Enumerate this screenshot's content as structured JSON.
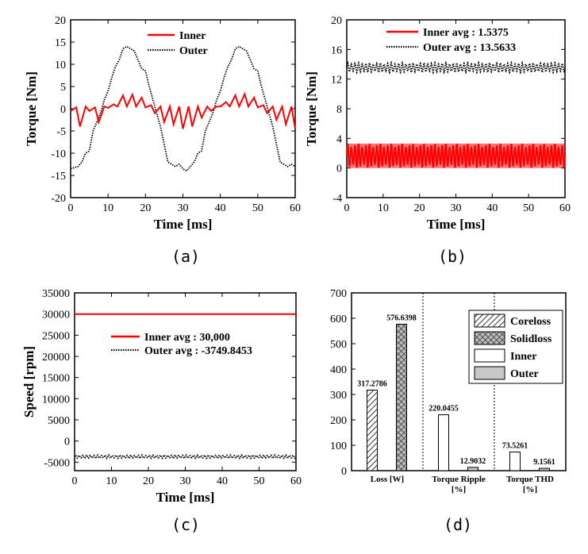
{
  "chart_data": [
    {
      "type": "line",
      "caption": "(a)",
      "xlabel": "Time [ms]",
      "ylabel": "Torque [Nm]",
      "xlim": [
        0,
        60
      ],
      "ylim": [
        -20,
        20
      ],
      "xticks": [
        "0",
        "10",
        "20",
        "30",
        "40",
        "50",
        "60"
      ],
      "yticks": [
        "-20",
        "-15",
        "-10",
        "-5",
        "0",
        "5",
        "10",
        "15",
        "20"
      ],
      "legend_position": "top-center",
      "series": [
        {
          "name": "Inner",
          "color": "#ff0000",
          "style": "solid",
          "x": [
            0,
            1.5,
            2.5,
            4,
            5,
            6.5,
            7.5,
            9,
            10,
            11.5,
            12.5,
            14,
            15,
            16.5,
            17.5,
            19,
            20,
            21.5,
            22.5,
            24,
            25,
            26.5,
            27.5,
            29,
            30,
            31.5,
            32.5,
            34,
            35,
            36.5,
            37.5,
            39,
            40,
            41.5,
            42.5,
            44,
            45,
            46.5,
            47.5,
            49,
            50,
            51.5,
            52.5,
            54,
            55,
            56.5,
            57.5,
            59,
            60
          ],
          "y": [
            -0.5,
            0.3,
            -4,
            0.5,
            -0.5,
            0.3,
            -3,
            0.5,
            0.2,
            1,
            0.5,
            3,
            0.5,
            3.2,
            0.5,
            2.5,
            0.3,
            0.8,
            -1,
            0.5,
            -3,
            0.5,
            -3.5,
            0.5,
            -4.5,
            0.5,
            -4,
            0.5,
            -2,
            0.5,
            -0.5,
            0.5,
            0.5,
            1.5,
            0.5,
            3,
            0.5,
            3.3,
            0.5,
            2.5,
            0.3,
            0.8,
            -1,
            0.5,
            -2.5,
            0.5,
            -3.5,
            0.5,
            -4.5
          ]
        },
        {
          "name": "Outer",
          "color": "#000000",
          "style": "dotted",
          "x": [
            0,
            2,
            3,
            4,
            5,
            6,
            7,
            8,
            9,
            10,
            11,
            12,
            13,
            14,
            15,
            16,
            17,
            18,
            19,
            20,
            21,
            22,
            23,
            24,
            25,
            26,
            27,
            28,
            29,
            30,
            31,
            32,
            33,
            34,
            35,
            36,
            37,
            38,
            39,
            40,
            41,
            42,
            43,
            44,
            45,
            46,
            47,
            48,
            49,
            50,
            51,
            52,
            53,
            54,
            55,
            56,
            57,
            58,
            59,
            60
          ],
          "y": [
            -13.5,
            -13,
            -12,
            -10,
            -9.5,
            -5,
            -3,
            -1,
            2,
            4,
            7,
            9.5,
            11,
            13.5,
            14,
            13.5,
            13,
            11,
            9,
            8.5,
            5,
            2,
            -1,
            -4,
            -8,
            -12,
            -12.5,
            -13,
            -12.5,
            -13.5,
            -14,
            -13,
            -12,
            -10,
            -9.5,
            -5,
            -3,
            -1,
            2,
            4,
            7,
            9.5,
            11,
            13.5,
            14,
            13.5,
            13,
            11,
            9,
            8.5,
            5,
            2,
            -1,
            -4,
            -8,
            -12,
            -12.5,
            -13,
            -12.5,
            -13
          ]
        }
      ]
    },
    {
      "type": "line",
      "caption": "(b)",
      "xlabel": "Time [ms]",
      "ylabel": "Torque [Nm]",
      "xlim": [
        0,
        60
      ],
      "ylim": [
        -4,
        20
      ],
      "xticks": [
        "0",
        "10",
        "20",
        "30",
        "40",
        "50",
        "60"
      ],
      "yticks": [
        "-4",
        "0",
        "4",
        "8",
        "12",
        "16",
        "20"
      ],
      "legend_position": "top-center",
      "series": [
        {
          "name": "Inner avg : 1.5375",
          "color": "#ff0000",
          "style": "solid",
          "mean": 1.5375,
          "min": 0,
          "max": 3.3,
          "oscillation_period_ms": 1
        },
        {
          "name": "Outer avg : 13.5633",
          "color": "#000000",
          "style": "dotted",
          "mean": 13.5633,
          "min": 12.9,
          "max": 14.2,
          "oscillation_period_ms": 1
        }
      ]
    },
    {
      "type": "line",
      "caption": "(c)",
      "xlabel": "Time [ms]",
      "ylabel": "Speed [rpm]",
      "xlim": [
        0,
        60
      ],
      "ylim": [
        -7000,
        35000
      ],
      "xticks": [
        "0",
        "10",
        "20",
        "30",
        "40",
        "50",
        "60"
      ],
      "yticks": [
        "-5000",
        "0",
        "5000",
        "10000",
        "15000",
        "20000",
        "25000",
        "30000",
        "35000"
      ],
      "legend_position": "center",
      "series": [
        {
          "name": "Inner avg : 30,000",
          "color": "#ff0000",
          "style": "solid",
          "mean": 30000,
          "min": 30000,
          "max": 30000,
          "oscillation_period_ms": 1
        },
        {
          "name": "Outer avg : -3749.8453",
          "color": "#000000",
          "style": "dotted",
          "mean": -3749.8453,
          "min": -4100,
          "max": -3300,
          "oscillation_period_ms": 1
        }
      ]
    },
    {
      "type": "bar",
      "caption": "(d)",
      "ylim": [
        0,
        700
      ],
      "yticks": [
        "0",
        "100",
        "200",
        "300",
        "400",
        "500",
        "600",
        "700"
      ],
      "categories": [
        "Loss [W]",
        "Torque Ripple\n[%]",
        "Torque THD\n[%]"
      ],
      "legend_position": "top-right",
      "legend": [
        {
          "name": "Coreloss",
          "pattern": "hatch"
        },
        {
          "name": "Solidloss",
          "pattern": "crosshatch"
        },
        {
          "name": "Inner",
          "pattern": "white"
        },
        {
          "name": "Outer",
          "pattern": "gray"
        }
      ],
      "bars": [
        {
          "category": 0,
          "pattern": "hatch",
          "value": 317.2786,
          "label": "317.2786"
        },
        {
          "category": 0,
          "pattern": "crosshatch",
          "value": 576.6398,
          "label": "576.6398"
        },
        {
          "category": 1,
          "pattern": "white",
          "value": 220.0455,
          "label": "220.0455"
        },
        {
          "category": 1,
          "pattern": "gray",
          "value": 12.9032,
          "label": "12.9032"
        },
        {
          "category": 2,
          "pattern": "white",
          "value": 73.5261,
          "label": "73.5261"
        },
        {
          "category": 2,
          "pattern": "gray",
          "value": 9.1561,
          "label": "9.1561"
        }
      ]
    }
  ]
}
